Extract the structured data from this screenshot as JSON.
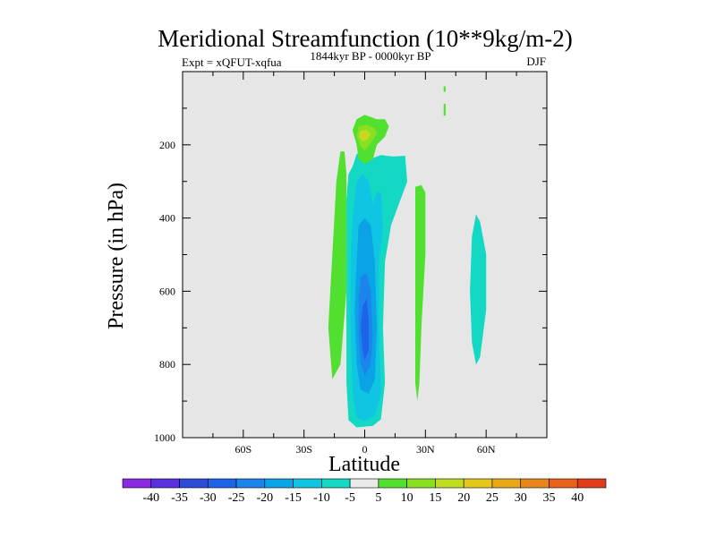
{
  "chart_data": {
    "type": "contour",
    "title": "Meridional Streamfunction (10**9kg/m-2)",
    "subtitle_left": "Expt = xQFUT-xqfua",
    "subtitle_center": "1844kyr BP - 0000kyr BP",
    "subtitle_right": "DJF",
    "xlabel": "Latitude",
    "ylabel": "Pressure (in hPa)",
    "xlim": [
      -90,
      90
    ],
    "ylim": [
      1000,
      0
    ],
    "x_ticks": [
      -60,
      -30,
      0,
      30,
      60
    ],
    "x_tick_labels": [
      "60S",
      "30S",
      "0",
      "30N",
      "60N"
    ],
    "x_minor_ticks": [
      -90,
      -75,
      -45,
      -15,
      15,
      45,
      75,
      90
    ],
    "y_ticks": [
      200,
      400,
      600,
      800,
      1000
    ],
    "y_tick_labels": [
      "200",
      "400",
      "600",
      "800",
      "1000"
    ],
    "y_minor_ticks": [
      100,
      300,
      500,
      700,
      900
    ],
    "colorbar": {
      "levels": [
        -40,
        -35,
        -30,
        -25,
        -20,
        -15,
        -10,
        -5,
        5,
        10,
        15,
        20,
        25,
        30,
        35,
        40
      ],
      "level_labels": [
        "-40",
        "-35",
        "-30",
        "-25",
        "-20",
        "-15",
        "-10",
        "-5",
        "5",
        "10",
        "15",
        "20",
        "25",
        "30",
        "35",
        "40"
      ],
      "colors": [
        "#8a2be2",
        "#5a2fe0",
        "#2c4bd8",
        "#1e64e8",
        "#1d84ee",
        "#0aa4e6",
        "#10c4e4",
        "#12d8c4",
        "#eaeaea",
        "#52e030",
        "#88e020",
        "#c0dc20",
        "#e4c818",
        "#e8a816",
        "#e8861c",
        "#e8621c",
        "#e03c1c"
      ]
    },
    "background_color": "#e6e6e6",
    "contour_regions": [
      {
        "name": "ns-southern-positive-cell",
        "level": 5,
        "color": "#52e030",
        "points": [
          [
            -12,
            218
          ],
          [
            -14,
            300
          ],
          [
            -16,
            500
          ],
          [
            -18,
            700
          ],
          [
            -16,
            840
          ],
          [
            -12,
            800
          ],
          [
            -9,
            600
          ],
          [
            -9,
            400
          ],
          [
            -9,
            280
          ],
          [
            -10,
            218
          ]
        ]
      },
      {
        "name": "ns-equatorial-negative-cell",
        "level": -5,
        "color": "#12d8c4",
        "points": [
          [
            -6,
            260
          ],
          [
            -4,
            225
          ],
          [
            -1,
            220
          ],
          [
            2,
            240
          ],
          [
            8,
            228
          ],
          [
            14,
            232
          ],
          [
            20,
            230
          ],
          [
            21,
            300
          ],
          [
            13,
            420
          ],
          [
            10,
            520
          ],
          [
            9,
            700
          ],
          [
            10,
            850
          ],
          [
            8,
            950
          ],
          [
            4,
            968
          ],
          [
            -4,
            972
          ],
          [
            -8,
            952
          ],
          [
            -9,
            850
          ],
          [
            -9,
            700
          ],
          [
            -9,
            500
          ],
          [
            -9,
            350
          ],
          [
            -8,
            280
          ]
        ]
      },
      {
        "name": "ns-equatorial-core-10",
        "level": -10,
        "color": "#10c4e4",
        "points": [
          [
            -4,
            300
          ],
          [
            -1,
            280
          ],
          [
            2,
            300
          ],
          [
            4,
            360
          ],
          [
            6,
            330
          ],
          [
            8,
            330
          ],
          [
            9,
            430
          ],
          [
            7,
            520
          ],
          [
            7,
            700
          ],
          [
            8,
            880
          ],
          [
            5,
            940
          ],
          [
            0,
            955
          ],
          [
            -4,
            945
          ],
          [
            -6,
            880
          ],
          [
            -7,
            700
          ],
          [
            -7,
            520
          ],
          [
            -6,
            400
          ]
        ]
      },
      {
        "name": "ns-equatorial-core-15",
        "level": -15,
        "color": "#0aa4e6",
        "points": [
          [
            -3,
            420
          ],
          [
            0,
            400
          ],
          [
            3,
            420
          ],
          [
            5,
            520
          ],
          [
            6,
            700
          ],
          [
            5,
            840
          ],
          [
            2,
            880
          ],
          [
            -2,
            870
          ],
          [
            -4,
            800
          ],
          [
            -5,
            650
          ],
          [
            -4,
            520
          ]
        ]
      },
      {
        "name": "ns-equatorial-core-20",
        "level": -20,
        "color": "#1d84ee",
        "points": [
          [
            -2,
            560
          ],
          [
            1,
            550
          ],
          [
            3,
            600
          ],
          [
            4,
            720
          ],
          [
            3,
            800
          ],
          [
            0,
            830
          ],
          [
            -2,
            800
          ],
          [
            -3,
            720
          ],
          [
            -3,
            620
          ]
        ]
      },
      {
        "name": "ns-equatorial-core-25",
        "level": -25,
        "color": "#1e64e8",
        "points": [
          [
            -1,
            640
          ],
          [
            1,
            620
          ],
          [
            2,
            680
          ],
          [
            2,
            760
          ],
          [
            0,
            790
          ],
          [
            -1,
            760
          ],
          [
            -2,
            700
          ]
        ]
      },
      {
        "name": "ns-upper-positive-cell",
        "level": 5,
        "color": "#52e030",
        "points": [
          [
            -4,
            130
          ],
          [
            0,
            118
          ],
          [
            6,
            130
          ],
          [
            10,
            130
          ],
          [
            12,
            150
          ],
          [
            10,
            178
          ],
          [
            6,
            200
          ],
          [
            4,
            240
          ],
          [
            0,
            252
          ],
          [
            -3,
            240
          ],
          [
            -4,
            200
          ],
          [
            -6,
            160
          ]
        ]
      },
      {
        "name": "ns-upper-core-10",
        "level": 10,
        "color": "#88e020",
        "points": [
          [
            -3,
            150
          ],
          [
            1,
            145
          ],
          [
            5,
            155
          ],
          [
            6,
            170
          ],
          [
            3,
            195
          ],
          [
            0,
            215
          ],
          [
            -2,
            205
          ],
          [
            -4,
            175
          ]
        ]
      },
      {
        "name": "ns-upper-core-15",
        "level": 15,
        "color": "#c0dc20",
        "points": [
          [
            -2,
            162
          ],
          [
            1,
            158
          ],
          [
            3,
            170
          ],
          [
            1,
            188
          ],
          [
            -1,
            190
          ],
          [
            -3,
            178
          ]
        ]
      },
      {
        "name": "ns-upper-core-20",
        "level": 20,
        "color": "#e4c818",
        "points": [
          [
            -1,
            168
          ],
          [
            1,
            170
          ],
          [
            0,
            180
          ],
          [
            -1,
            178
          ]
        ]
      },
      {
        "name": "ns-subtropical-positive-cell",
        "level": 5,
        "color": "#52e030",
        "points": [
          [
            25,
            315
          ],
          [
            28,
            310
          ],
          [
            30,
            330
          ],
          [
            30,
            500
          ],
          [
            28,
            700
          ],
          [
            27,
            850
          ],
          [
            26,
            900
          ],
          [
            25,
            850
          ],
          [
            25,
            600
          ]
        ]
      },
      {
        "name": "ns-northern-negative-cell",
        "level": -5,
        "color": "#12d8c4",
        "points": [
          [
            55,
            390
          ],
          [
            57,
            410
          ],
          [
            60,
            500
          ],
          [
            60,
            650
          ],
          [
            57,
            780
          ],
          [
            55,
            800
          ],
          [
            53,
            740
          ],
          [
            52,
            600
          ],
          [
            53,
            450
          ]
        ]
      },
      {
        "name": "ns-top-sliver",
        "level": 5,
        "color": "#52e030",
        "points": [
          [
            39,
            40
          ],
          [
            40,
            40
          ],
          [
            40,
            55
          ],
          [
            39,
            55
          ]
        ]
      },
      {
        "name": "ns-top-sliver-lower",
        "level": 5,
        "color": "#52e030",
        "points": [
          [
            39,
            88
          ],
          [
            40,
            88
          ],
          [
            40,
            120
          ],
          [
            39,
            120
          ]
        ]
      }
    ]
  }
}
